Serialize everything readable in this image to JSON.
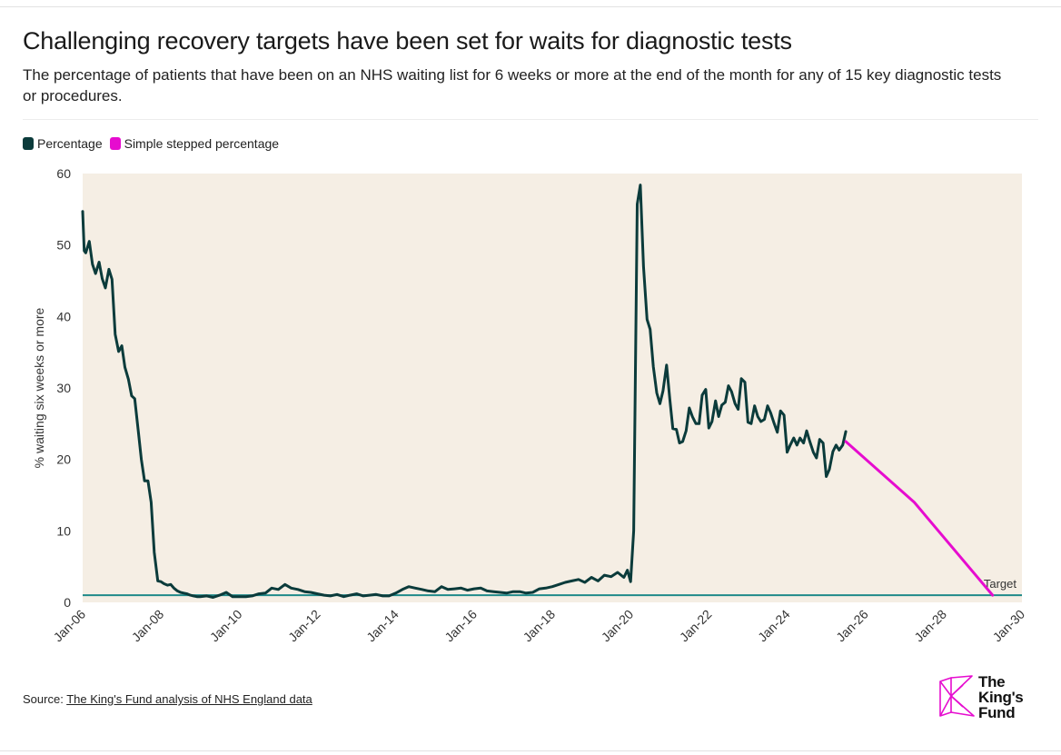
{
  "header": {
    "title": "Challenging recovery targets have been set for waits for diagnostic tests",
    "subtitle": "The percentage of patients that have been on an NHS waiting list for 6 weeks or more at the end of the month for any of 15 key diagnostic tests or procedures."
  },
  "legend": {
    "items": [
      {
        "label": "Percentage",
        "color": "#0b3b3b"
      },
      {
        "label": "Simple stepped percentage",
        "color": "#e60ccf"
      }
    ]
  },
  "source": {
    "prefix": "Source: ",
    "link_text": "The King's Fund analysis of NHS England data"
  },
  "logo": {
    "lines": [
      "The",
      "King's",
      "Fund"
    ]
  },
  "chart_data": {
    "type": "line",
    "title": "",
    "xlabel": "",
    "ylabel": "% waiting six weeks or more",
    "x_ticks": [
      "Jan-06",
      "Jan-08",
      "Jan-10",
      "Jan-12",
      "Jan-14",
      "Jan-16",
      "Jan-18",
      "Jan-20",
      "Jan-22",
      "Jan-24",
      "Jan-26",
      "Jan-28",
      "Jan-30"
    ],
    "xlim": [
      2006.0,
      2030.0
    ],
    "ylim": [
      0,
      60
    ],
    "y_ticks": [
      0,
      10,
      20,
      30,
      40,
      50,
      60
    ],
    "grid": false,
    "legend_position": "top-left",
    "plot_background": "#f5eee4",
    "series": [
      {
        "name": "Percentage",
        "color": "#0b3b3b",
        "x": [
          2006.0,
          2006.04,
          2006.08,
          2006.17,
          2006.25,
          2006.33,
          2006.42,
          2006.5,
          2006.58,
          2006.67,
          2006.75,
          2006.83,
          2006.92,
          2007.0,
          2007.08,
          2007.17,
          2007.25,
          2007.33,
          2007.42,
          2007.5,
          2007.58,
          2007.67,
          2007.75,
          2007.83,
          2007.92,
          2008.0,
          2008.08,
          2008.17,
          2008.25,
          2008.33,
          2008.42,
          2008.5,
          2008.58,
          2008.67,
          2008.75,
          2008.83,
          2008.92,
          2009.0,
          2009.17,
          2009.33,
          2009.5,
          2009.67,
          2009.83,
          2010.0,
          2010.17,
          2010.33,
          2010.5,
          2010.67,
          2010.83,
          2011.0,
          2011.17,
          2011.33,
          2011.5,
          2011.67,
          2011.83,
          2012.0,
          2012.17,
          2012.33,
          2012.5,
          2012.67,
          2012.83,
          2013.0,
          2013.17,
          2013.33,
          2013.5,
          2013.67,
          2013.83,
          2014.0,
          2014.17,
          2014.33,
          2014.5,
          2014.67,
          2014.83,
          2015.0,
          2015.17,
          2015.33,
          2015.5,
          2015.67,
          2015.83,
          2016.0,
          2016.17,
          2016.33,
          2016.5,
          2016.67,
          2016.83,
          2017.0,
          2017.17,
          2017.33,
          2017.5,
          2017.67,
          2017.83,
          2018.0,
          2018.17,
          2018.33,
          2018.5,
          2018.67,
          2018.83,
          2019.0,
          2019.17,
          2019.33,
          2019.5,
          2019.67,
          2019.83,
          2019.92,
          2020.0,
          2020.08,
          2020.17,
          2020.25,
          2020.33,
          2020.42,
          2020.5,
          2020.58,
          2020.67,
          2020.75,
          2020.83,
          2020.92,
          2021.0,
          2021.08,
          2021.17,
          2021.25,
          2021.33,
          2021.42,
          2021.5,
          2021.58,
          2021.67,
          2021.75,
          2021.83,
          2021.92,
          2022.0,
          2022.08,
          2022.17,
          2022.25,
          2022.33,
          2022.42,
          2022.5,
          2022.58,
          2022.67,
          2022.75,
          2022.83,
          2022.92,
          2023.0,
          2023.08,
          2023.17,
          2023.25,
          2023.33,
          2023.42,
          2023.5,
          2023.58,
          2023.67,
          2023.75,
          2023.83,
          2023.92,
          2024.0,
          2024.08,
          2024.17,
          2024.25,
          2024.33,
          2024.42,
          2024.5,
          2024.58,
          2024.67,
          2024.75,
          2024.83,
          2024.92,
          2025.0,
          2025.08,
          2025.17,
          2025.25,
          2025.33,
          2025.42,
          2025.5
        ],
        "y": [
          54.7,
          49.2,
          48.9,
          50.5,
          47.3,
          46.0,
          47.6,
          45.3,
          44.0,
          46.6,
          45.2,
          37.5,
          35.1,
          35.9,
          32.9,
          31.2,
          28.9,
          28.5,
          24.0,
          20.0,
          17.0,
          17.0,
          14.0,
          7.0,
          3.0,
          2.9,
          2.6,
          2.4,
          2.5,
          2.0,
          1.6,
          1.4,
          1.3,
          1.2,
          1.0,
          0.9,
          0.8,
          0.8,
          0.9,
          0.7,
          1.0,
          1.4,
          0.8,
          0.8,
          0.8,
          0.9,
          1.2,
          1.3,
          2.0,
          1.8,
          2.5,
          2.0,
          1.8,
          1.5,
          1.4,
          1.2,
          1.0,
          0.9,
          1.1,
          0.8,
          1.0,
          1.2,
          0.9,
          1.0,
          1.1,
          0.9,
          0.9,
          1.3,
          1.8,
          2.2,
          2.0,
          1.8,
          1.6,
          1.5,
          2.2,
          1.8,
          1.9,
          2.0,
          1.7,
          1.9,
          2.0,
          1.6,
          1.5,
          1.4,
          1.3,
          1.5,
          1.5,
          1.3,
          1.4,
          1.9,
          2.0,
          2.2,
          2.5,
          2.8,
          3.0,
          3.2,
          2.8,
          3.5,
          3.0,
          3.8,
          3.6,
          4.2,
          3.5,
          4.5,
          2.9,
          10.0,
          55.7,
          58.4,
          47.0,
          39.6,
          38.2,
          33.0,
          29.3,
          27.8,
          29.6,
          33.2,
          28.5,
          24.3,
          24.2,
          22.3,
          22.5,
          24.0,
          27.2,
          26.0,
          25.0,
          25.0,
          29.0,
          29.8,
          24.4,
          25.3,
          28.2,
          26.0,
          27.6,
          28.0,
          30.3,
          29.5,
          27.8,
          27.0,
          31.3,
          30.8,
          25.2,
          25.0,
          27.5,
          26.0,
          25.3,
          25.6,
          27.5,
          26.5,
          25.0,
          23.8,
          26.8,
          26.2,
          21.0,
          22.0,
          23.0,
          22.0,
          23.0,
          22.3,
          24.0,
          22.5,
          21.0,
          20.2,
          22.8,
          22.3,
          17.6,
          18.6,
          21.1,
          22.0,
          21.3,
          22.0,
          23.9
        ],
        "style": "solid"
      },
      {
        "name": "Simple stepped percentage",
        "color": "#e60ccf",
        "x": [
          2025.5,
          2027.25,
          2029.25
        ],
        "y": [
          22.5,
          14.0,
          1.0
        ],
        "style": "solid"
      }
    ],
    "reference_lines": [
      {
        "label": "Target",
        "y": 1.0,
        "color": "#1f8a8a"
      }
    ]
  }
}
